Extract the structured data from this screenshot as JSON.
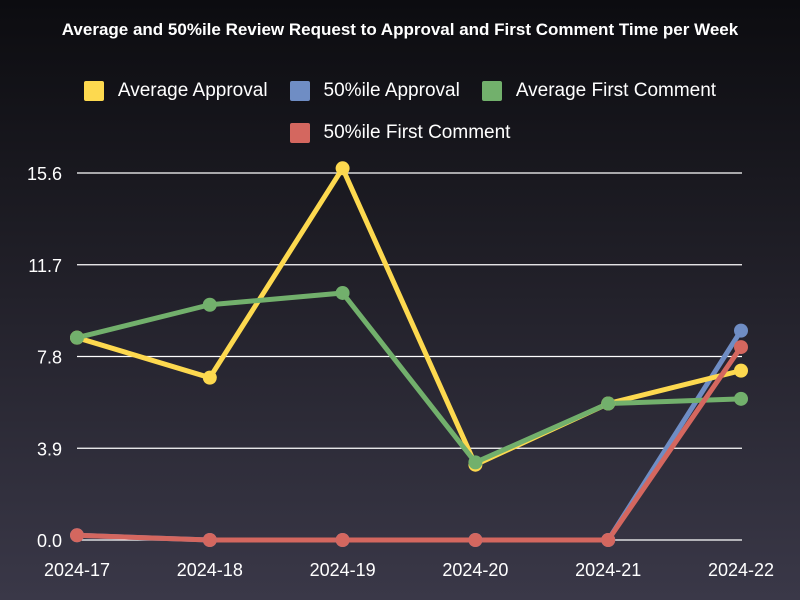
{
  "chart_data": {
    "type": "line",
    "title": "Average and 50%ile Review Request to Approval and First Comment Time per Week",
    "categories": [
      "2024-17",
      "2024-18",
      "2024-19",
      "2024-20",
      "2024-21",
      "2024-22"
    ],
    "y_ticks": [
      "0.0",
      "3.9",
      "7.8",
      "11.7",
      "15.6"
    ],
    "ylim": [
      0,
      15.6
    ],
    "grid": true,
    "legend_position": "top",
    "series": [
      {
        "name": "Average Approval",
        "color": "#fdd94f",
        "values": [
          8.6,
          6.9,
          15.8,
          3.2,
          5.8,
          7.2
        ]
      },
      {
        "name": "50%ile Approval",
        "color": "#6f8dc4",
        "values": [
          0.2,
          0.0,
          0.0,
          0.0,
          0.0,
          8.9
        ]
      },
      {
        "name": "Average First Comment",
        "color": "#72b06c",
        "values": [
          8.6,
          10.0,
          10.5,
          3.3,
          5.8,
          6.0
        ]
      },
      {
        "name": "50%ile First Comment",
        "color": "#d4675f",
        "values": [
          0.2,
          0.0,
          0.0,
          0.0,
          0.0,
          8.2
        ]
      }
    ]
  }
}
